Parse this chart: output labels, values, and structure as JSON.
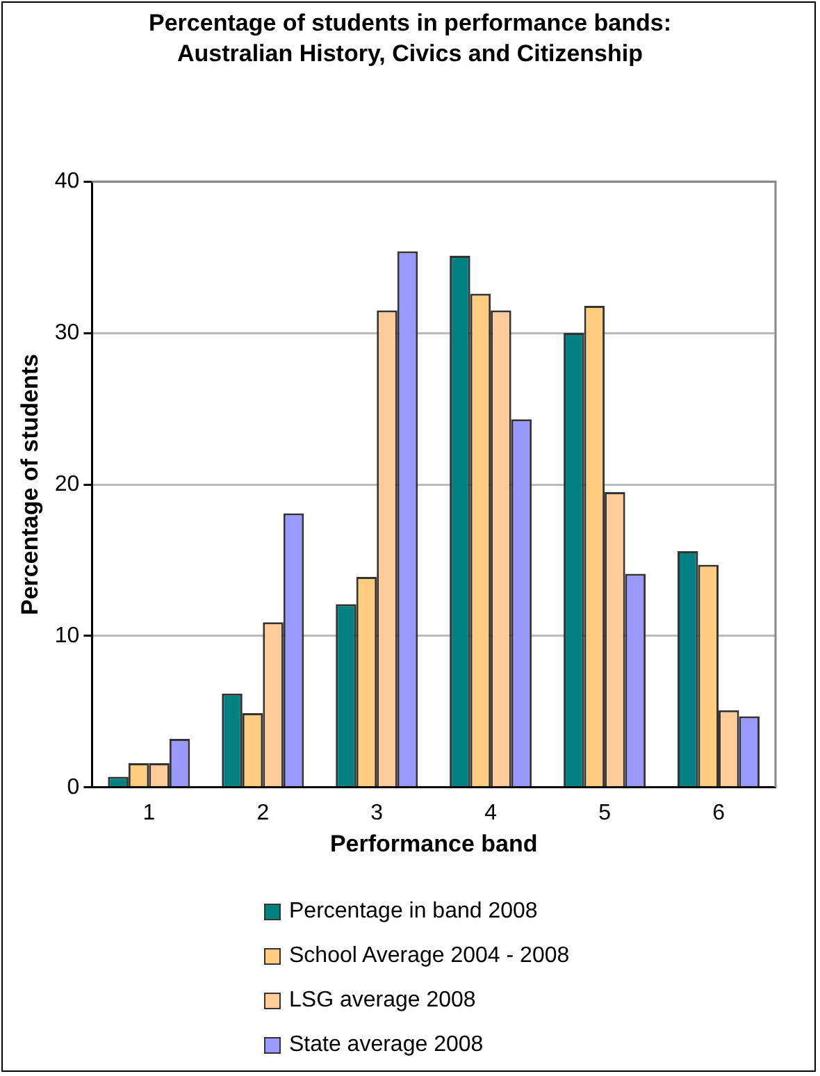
{
  "chart_data": {
    "type": "bar",
    "title": "Percentage of students in performance bands: Australian History, Civics and Citizenship",
    "xlabel": "Performance band",
    "ylabel": "Percentage of students",
    "categories": [
      "1",
      "2",
      "3",
      "4",
      "5",
      "6"
    ],
    "series": [
      {
        "name": "Percentage in band 2008",
        "color": "#008080",
        "values": [
          0.7,
          6.2,
          12.1,
          35.1,
          30.0,
          15.6
        ]
      },
      {
        "name": "School Average 2004 - 2008",
        "color": "#ffcc80",
        "values": [
          1.6,
          4.9,
          13.9,
          32.6,
          31.8,
          14.7
        ]
      },
      {
        "name": "LSG average 2008",
        "color": "#ffcc99",
        "values": [
          1.6,
          10.9,
          31.5,
          31.5,
          19.5,
          5.1
        ]
      },
      {
        "name": "State average 2008",
        "color": "#9999ff",
        "values": [
          3.2,
          18.1,
          35.4,
          24.3,
          14.1,
          4.7
        ]
      }
    ],
    "ylim": [
      0,
      40
    ],
    "yticks": [
      0,
      10,
      20,
      30,
      40
    ],
    "grid": "y",
    "legend": "bottom"
  }
}
